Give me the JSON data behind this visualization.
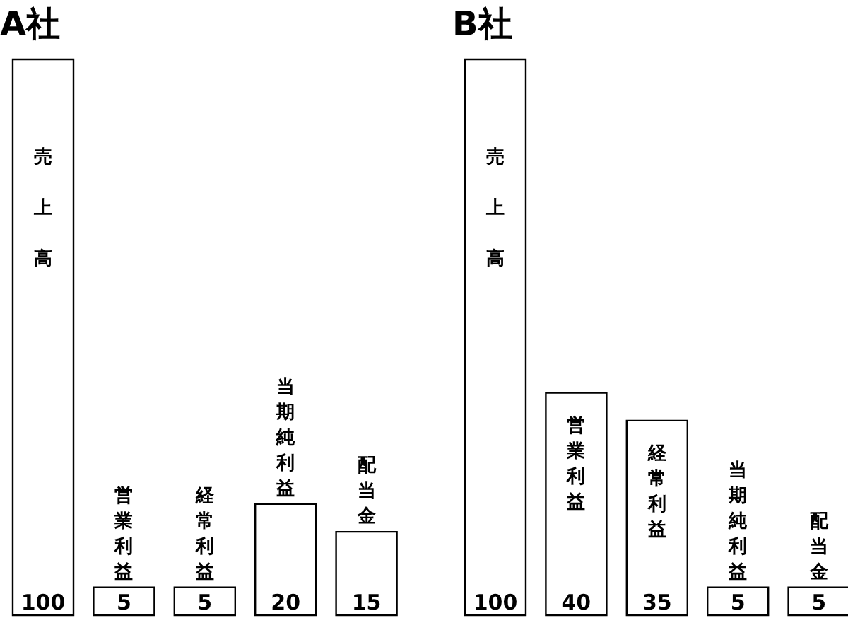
{
  "chart_data": [
    {
      "type": "bar",
      "title": "A社",
      "categories": [
        "売上高",
        "営業利益",
        "経常利益",
        "当期純利益",
        "配当金"
      ],
      "values": [
        100,
        5,
        5,
        20,
        15
      ],
      "color": "#ffffff",
      "data_labels": true
    },
    {
      "type": "bar",
      "title": "B社",
      "categories": [
        "売上高",
        "営業利益",
        "経常利益",
        "当期純利益",
        "配当金"
      ],
      "values": [
        100,
        40,
        35,
        5,
        5
      ],
      "color": "#ffffff",
      "data_labels": true
    }
  ]
}
